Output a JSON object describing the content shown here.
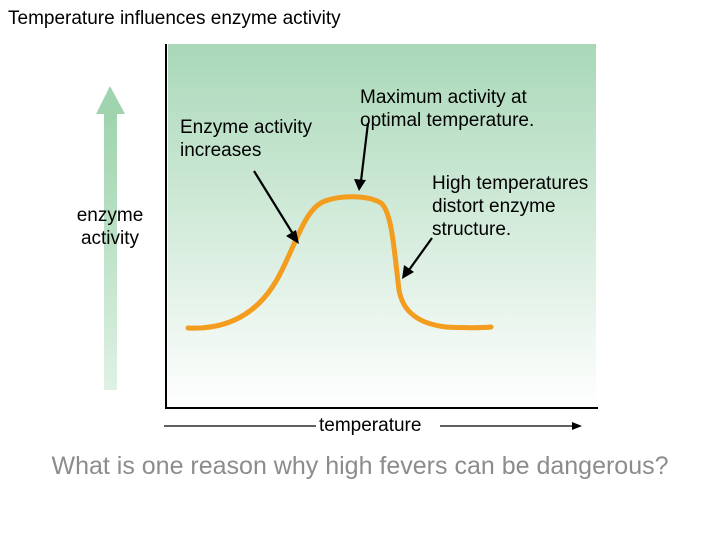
{
  "title": "Temperature influences enzyme activity",
  "y_axis_label": "enzyme activity",
  "x_axis_label": "temperature",
  "annotations": {
    "increase": "Enzyme activity increases",
    "maximum": "Maximum activity at optimal temperature.",
    "high_temp": "High temperatures distort enzyme structure."
  },
  "question": "What is one reason why high fevers can be dangerous?",
  "colors": {
    "panel_top": "#a9d8b8",
    "panel_bottom": "#ffffff",
    "curve": "#f39c1e",
    "up_arrow": "#a9d8b8",
    "question_text": "#8c8c8c"
  }
}
